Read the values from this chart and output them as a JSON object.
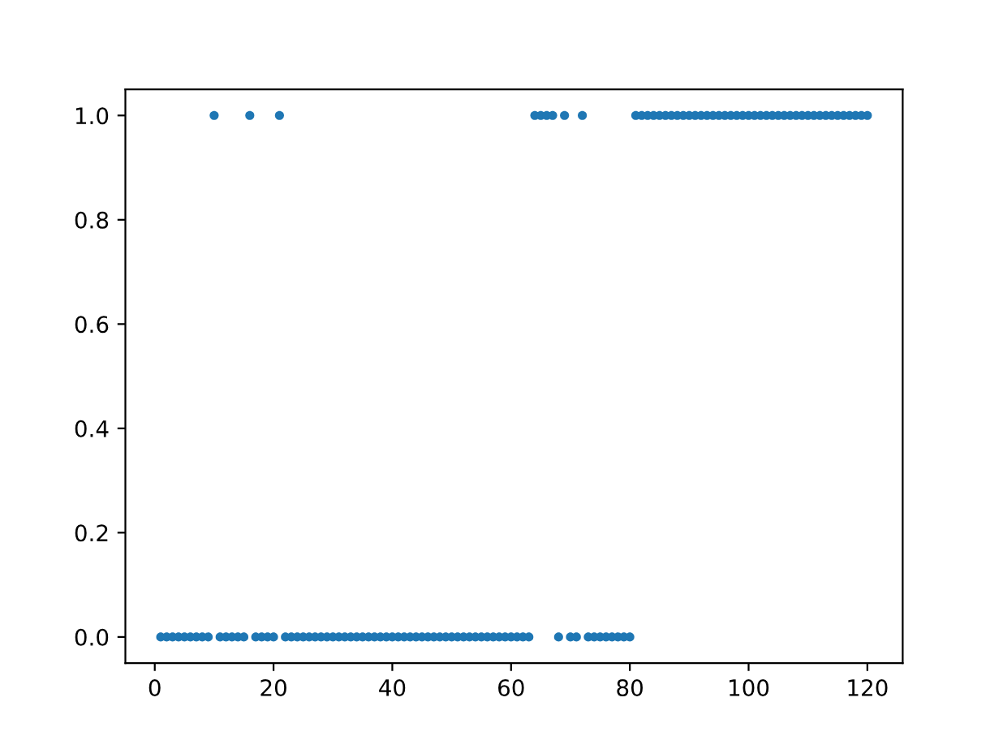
{
  "chart_data": {
    "type": "scatter",
    "x": [
      1,
      2,
      3,
      4,
      5,
      6,
      7,
      8,
      9,
      10,
      11,
      12,
      13,
      14,
      15,
      16,
      17,
      18,
      19,
      20,
      21,
      22,
      23,
      24,
      25,
      26,
      27,
      28,
      29,
      30,
      31,
      32,
      33,
      34,
      35,
      36,
      37,
      38,
      39,
      40,
      41,
      42,
      43,
      44,
      45,
      46,
      47,
      48,
      49,
      50,
      51,
      52,
      53,
      54,
      55,
      56,
      57,
      58,
      59,
      60,
      61,
      62,
      63,
      64,
      65,
      66,
      67,
      68,
      69,
      70,
      71,
      72,
      73,
      74,
      75,
      76,
      77,
      78,
      79,
      80,
      81,
      82,
      83,
      84,
      85,
      86,
      87,
      88,
      89,
      90,
      91,
      92,
      93,
      94,
      95,
      96,
      97,
      98,
      99,
      100,
      101,
      102,
      103,
      104,
      105,
      106,
      107,
      108,
      109,
      110,
      111,
      112,
      113,
      114,
      115,
      116,
      117,
      118,
      119,
      120
    ],
    "values": [
      0,
      0,
      0,
      0,
      0,
      0,
      0,
      0,
      0,
      1,
      0,
      0,
      0,
      0,
      0,
      1,
      0,
      0,
      0,
      0,
      1,
      0,
      0,
      0,
      0,
      0,
      0,
      0,
      0,
      0,
      0,
      0,
      0,
      0,
      0,
      0,
      0,
      0,
      0,
      0,
      0,
      0,
      0,
      0,
      0,
      0,
      0,
      0,
      0,
      0,
      0,
      0,
      0,
      0,
      0,
      0,
      0,
      0,
      0,
      0,
      0,
      0,
      0,
      1,
      1,
      1,
      1,
      0,
      1,
      0,
      0,
      1,
      0,
      0,
      0,
      0,
      0,
      0,
      0,
      0,
      1,
      1,
      1,
      1,
      1,
      1,
      1,
      1,
      1,
      1,
      1,
      1,
      1,
      1,
      1,
      1,
      1,
      1,
      1,
      1,
      1,
      1,
      1,
      1,
      1,
      1,
      1,
      1,
      1,
      1,
      1,
      1,
      1,
      1,
      1,
      1,
      1,
      1,
      1,
      1
    ],
    "color": "#1f77b4",
    "marker": "circle",
    "xlim": [
      -4.95,
      125.95
    ],
    "xticks": [
      0,
      20,
      40,
      60,
      80,
      100,
      120
    ],
    "ylim": [
      -0.05,
      1.05
    ],
    "yticks": [
      {
        "value": 0,
        "label": "0.0"
      },
      {
        "value": 0.2,
        "label": "0.2"
      },
      {
        "value": 0.4,
        "label": "0.4"
      },
      {
        "value": 0.6,
        "label": "0.6"
      },
      {
        "value": 0.8,
        "label": "0.8"
      },
      {
        "value": 1,
        "label": "1.0"
      }
    ],
    "grid": false
  }
}
